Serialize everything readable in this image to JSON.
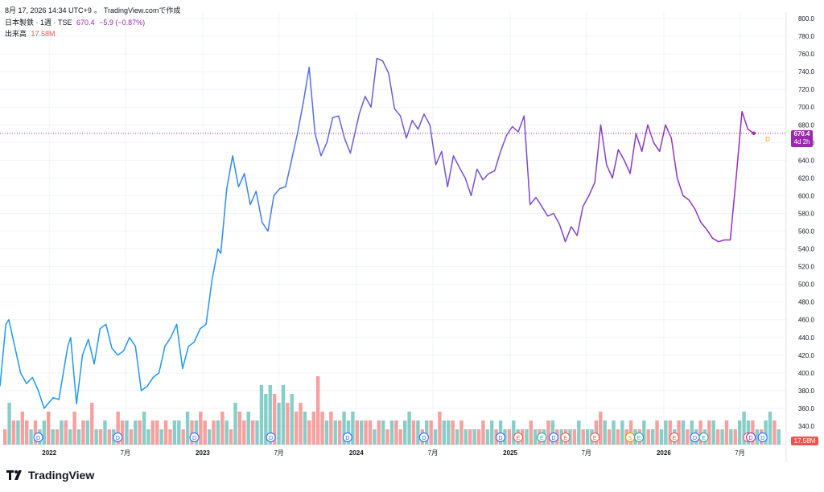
{
  "header": {
    "timestamp": "8月 17, 2026 14:34 UTC+9",
    "source": "TradingView.comで作成",
    "symbol": "日本製鉄 · 1週 · TSE",
    "last": "670.4",
    "change": "−5.9 (−0.87%)",
    "volume_label": "出来高",
    "volume_value": "17.58M"
  },
  "price_tag": {
    "value": "670.4",
    "countdown": "4d 2h"
  },
  "volume_tag": "17.58M",
  "footer": {
    "brand": "TradingView"
  },
  "colors": {
    "line_early": "#2196f3",
    "line_late": "#9c27b0",
    "up_volume": "#26a69a",
    "down_volume": "#ef5350",
    "price_tag": "#9c27b0",
    "grid": "#f0f3fa",
    "text": "#131722"
  },
  "chart_data": {
    "type": "line",
    "title": "日本製鉄 · 1週 · TSE",
    "xlabel": "",
    "ylabel": "",
    "ylim": [
      330,
      800
    ],
    "yticks": [
      340,
      360,
      380,
      400,
      420,
      440,
      460,
      480,
      500,
      520,
      540,
      560,
      580,
      600,
      620,
      640,
      660,
      680,
      700,
      720,
      740,
      760,
      780,
      800
    ],
    "xticks": [
      "2022",
      "7月",
      "2023",
      "7月",
      "2024",
      "7月",
      "2025",
      "7月",
      "2026",
      "7月"
    ],
    "x_range": [
      "2021-09-06",
      "2026-10-19"
    ],
    "grid": true,
    "last_value": 670.4,
    "price_series": [
      [
        "2021-09-06",
        385
      ],
      [
        "2021-09-20",
        455
      ],
      [
        "2021-09-27",
        460
      ],
      [
        "2021-10-11",
        430
      ],
      [
        "2021-10-25",
        400
      ],
      [
        "2021-11-08",
        388
      ],
      [
        "2021-11-22",
        395
      ],
      [
        "2021-12-06",
        380
      ],
      [
        "2021-12-20",
        360
      ],
      [
        "2022-01-10",
        372
      ],
      [
        "2022-01-24",
        370
      ],
      [
        "2022-02-14",
        430
      ],
      [
        "2022-02-21",
        440
      ],
      [
        "2022-03-07",
        365
      ],
      [
        "2022-03-21",
        420
      ],
      [
        "2022-04-04",
        438
      ],
      [
        "2022-04-18",
        410
      ],
      [
        "2022-05-02",
        450
      ],
      [
        "2022-05-16",
        455
      ],
      [
        "2022-05-30",
        428
      ],
      [
        "2022-06-13",
        420
      ],
      [
        "2022-06-27",
        425
      ],
      [
        "2022-07-11",
        440
      ],
      [
        "2022-07-25",
        430
      ],
      [
        "2022-08-08",
        380
      ],
      [
        "2022-08-22",
        385
      ],
      [
        "2022-09-05",
        395
      ],
      [
        "2022-09-19",
        400
      ],
      [
        "2022-10-03",
        430
      ],
      [
        "2022-10-17",
        440
      ],
      [
        "2022-10-31",
        455
      ],
      [
        "2022-11-14",
        405
      ],
      [
        "2022-11-28",
        430
      ],
      [
        "2022-12-12",
        435
      ],
      [
        "2022-12-26",
        450
      ],
      [
        "2023-01-09",
        455
      ],
      [
        "2023-01-23",
        505
      ],
      [
        "2023-02-06",
        540
      ],
      [
        "2023-02-13",
        535
      ],
      [
        "2023-02-27",
        608
      ],
      [
        "2023-03-13",
        645
      ],
      [
        "2023-03-27",
        610
      ],
      [
        "2023-04-10",
        625
      ],
      [
        "2023-04-24",
        590
      ],
      [
        "2023-05-08",
        605
      ],
      [
        "2023-05-22",
        570
      ],
      [
        "2023-06-05",
        560
      ],
      [
        "2023-06-19",
        600
      ],
      [
        "2023-07-03",
        608
      ],
      [
        "2023-07-17",
        610
      ],
      [
        "2023-07-31",
        640
      ],
      [
        "2023-08-14",
        670
      ],
      [
        "2023-08-28",
        705
      ],
      [
        "2023-09-11",
        745
      ],
      [
        "2023-09-25",
        670
      ],
      [
        "2023-10-09",
        645
      ],
      [
        "2023-10-23",
        660
      ],
      [
        "2023-11-06",
        688
      ],
      [
        "2023-11-20",
        690
      ],
      [
        "2023-12-04",
        665
      ],
      [
        "2023-12-18",
        648
      ],
      [
        "2024-01-08",
        692
      ],
      [
        "2024-01-22",
        712
      ],
      [
        "2024-02-05",
        700
      ],
      [
        "2024-02-19",
        755
      ],
      [
        "2024-03-04",
        752
      ],
      [
        "2024-03-18",
        738
      ],
      [
        "2024-04-01",
        698
      ],
      [
        "2024-04-15",
        690
      ],
      [
        "2024-04-29",
        665
      ],
      [
        "2024-05-13",
        685
      ],
      [
        "2024-05-27",
        675
      ],
      [
        "2024-06-10",
        692
      ],
      [
        "2024-06-24",
        680
      ],
      [
        "2024-07-08",
        635
      ],
      [
        "2024-07-22",
        650
      ],
      [
        "2024-08-05",
        610
      ],
      [
        "2024-08-19",
        645
      ],
      [
        "2024-09-02",
        632
      ],
      [
        "2024-09-16",
        620
      ],
      [
        "2024-09-30",
        600
      ],
      [
        "2024-10-14",
        630
      ],
      [
        "2024-10-28",
        618
      ],
      [
        "2024-11-11",
        625
      ],
      [
        "2024-11-25",
        628
      ],
      [
        "2024-12-09",
        650
      ],
      [
        "2024-12-23",
        668
      ],
      [
        "2025-01-06",
        678
      ],
      [
        "2025-01-20",
        672
      ],
      [
        "2025-02-03",
        690
      ],
      [
        "2025-02-17",
        590
      ],
      [
        "2025-03-03",
        598
      ],
      [
        "2025-03-17",
        588
      ],
      [
        "2025-03-31",
        577
      ],
      [
        "2025-04-14",
        580
      ],
      [
        "2025-04-28",
        568
      ],
      [
        "2025-05-12",
        548
      ],
      [
        "2025-05-26",
        565
      ],
      [
        "2025-06-09",
        555
      ],
      [
        "2025-06-23",
        588
      ],
      [
        "2025-07-07",
        600
      ],
      [
        "2025-07-21",
        615
      ],
      [
        "2025-08-04",
        680
      ],
      [
        "2025-08-18",
        635
      ],
      [
        "2025-09-01",
        620
      ],
      [
        "2025-09-15",
        652
      ],
      [
        "2025-09-29",
        640
      ],
      [
        "2025-10-13",
        625
      ],
      [
        "2025-10-27",
        670
      ],
      [
        "2025-11-10",
        650
      ],
      [
        "2025-11-24",
        680
      ],
      [
        "2025-12-08",
        660
      ],
      [
        "2025-12-22",
        650
      ],
      [
        "2026-01-05",
        680
      ],
      [
        "2026-01-19",
        665
      ],
      [
        "2026-02-02",
        620
      ],
      [
        "2026-02-16",
        600
      ],
      [
        "2026-03-02",
        595
      ],
      [
        "2026-03-16",
        585
      ],
      [
        "2026-03-30",
        570
      ],
      [
        "2026-04-13",
        562
      ],
      [
        "2026-04-27",
        552
      ],
      [
        "2026-05-11",
        548
      ],
      [
        "2026-05-25",
        550
      ],
      [
        "2026-06-08",
        550
      ],
      [
        "2026-06-22",
        620
      ],
      [
        "2026-07-06",
        695
      ],
      [
        "2026-07-20",
        675
      ],
      [
        "2026-08-03",
        670.4
      ]
    ],
    "volume_series": [
      [
        1,
        0
      ],
      [
        4,
        1
      ],
      [
        2,
        0
      ],
      [
        2,
        1
      ],
      [
        3,
        0
      ],
      [
        2,
        0
      ],
      [
        1,
        1
      ],
      [
        2,
        0
      ],
      [
        1,
        1
      ],
      [
        2,
        1
      ],
      [
        3,
        0
      ],
      [
        1,
        1
      ],
      [
        1,
        0
      ],
      [
        2,
        1
      ],
      [
        2,
        0
      ],
      [
        1,
        1
      ],
      [
        3,
        0
      ],
      [
        1,
        1
      ],
      [
        2,
        0
      ],
      [
        2,
        1
      ],
      [
        4,
        0
      ],
      [
        1,
        1
      ],
      [
        1,
        0
      ],
      [
        2,
        1
      ],
      [
        1,
        0
      ],
      [
        1,
        1
      ],
      [
        3,
        0
      ],
      [
        2,
        0
      ],
      [
        2,
        1
      ],
      [
        1,
        0
      ],
      [
        2,
        1
      ],
      [
        2,
        0
      ],
      [
        3,
        1
      ],
      [
        1,
        1
      ],
      [
        2,
        0
      ],
      [
        2,
        0
      ],
      [
        1,
        1
      ],
      [
        2,
        0
      ],
      [
        1,
        0
      ],
      [
        2,
        1
      ],
      [
        2,
        1
      ],
      [
        1,
        0
      ],
      [
        3,
        1
      ],
      [
        2,
        0
      ],
      [
        2,
        1
      ],
      [
        3,
        0
      ],
      [
        2,
        0
      ],
      [
        1,
        1
      ],
      [
        2,
        0
      ],
      [
        2,
        1
      ],
      [
        3,
        0
      ],
      [
        2,
        1
      ],
      [
        1,
        0
      ],
      [
        4,
        1
      ],
      [
        3,
        0
      ],
      [
        2,
        0
      ],
      [
        3,
        1
      ],
      [
        2,
        0
      ],
      [
        2,
        1
      ],
      [
        6,
        1
      ],
      [
        5,
        1
      ],
      [
        6,
        1
      ],
      [
        5,
        0
      ],
      [
        4,
        1
      ],
      [
        6,
        1
      ],
      [
        4,
        0
      ],
      [
        5,
        1
      ],
      [
        3,
        0
      ],
      [
        4,
        0
      ],
      [
        3,
        1
      ],
      [
        2,
        0
      ],
      [
        3,
        0
      ],
      [
        7,
        0
      ],
      [
        3,
        0
      ],
      [
        2,
        1
      ],
      [
        3,
        0
      ],
      [
        2,
        1
      ],
      [
        2,
        0
      ],
      [
        3,
        1
      ],
      [
        2,
        1
      ],
      [
        3,
        1
      ],
      [
        2,
        0
      ],
      [
        2,
        1
      ],
      [
        2,
        0
      ],
      [
        2,
        0
      ],
      [
        1,
        1
      ],
      [
        2,
        0
      ],
      [
        2,
        1
      ],
      [
        1,
        0
      ],
      [
        2,
        1
      ],
      [
        2,
        0
      ],
      [
        1,
        0
      ],
      [
        2,
        1
      ],
      [
        3,
        1
      ],
      [
        2,
        0
      ],
      [
        2,
        1
      ],
      [
        1,
        0
      ],
      [
        2,
        1
      ],
      [
        2,
        0
      ],
      [
        1,
        1
      ],
      [
        3,
        0
      ],
      [
        2,
        1
      ],
      [
        2,
        1
      ],
      [
        2,
        0
      ],
      [
        1,
        1
      ],
      [
        2,
        0
      ],
      [
        1,
        1
      ],
      [
        1,
        0
      ],
      [
        1,
        1
      ],
      [
        1,
        0
      ],
      [
        2,
        0
      ],
      [
        1,
        1
      ],
      [
        2,
        1
      ],
      [
        1,
        0
      ],
      [
        2,
        1
      ],
      [
        1,
        1
      ],
      [
        1,
        0
      ],
      [
        2,
        1
      ],
      [
        1,
        1
      ],
      [
        1,
        0
      ],
      [
        1,
        1
      ],
      [
        2,
        0
      ],
      [
        1,
        1
      ],
      [
        1,
        0
      ],
      [
        1,
        1
      ],
      [
        2,
        0
      ],
      [
        2,
        1
      ],
      [
        1,
        0
      ],
      [
        1,
        1
      ],
      [
        1,
        0
      ],
      [
        1,
        1
      ],
      [
        1,
        0
      ],
      [
        2,
        1
      ],
      [
        1,
        0
      ],
      [
        1,
        1
      ],
      [
        1,
        1
      ],
      [
        2,
        0
      ],
      [
        3,
        0
      ],
      [
        2,
        1
      ],
      [
        1,
        0
      ],
      [
        2,
        1
      ],
      [
        1,
        0
      ],
      [
        2,
        1
      ],
      [
        1,
        0
      ],
      [
        2,
        0
      ],
      [
        1,
        1
      ],
      [
        1,
        0
      ],
      [
        2,
        1
      ],
      [
        1,
        0
      ],
      [
        1,
        1
      ],
      [
        2,
        0
      ],
      [
        1,
        1
      ],
      [
        2,
        1
      ],
      [
        2,
        0
      ],
      [
        1,
        1
      ],
      [
        2,
        0
      ],
      [
        2,
        1
      ],
      [
        1,
        0
      ],
      [
        2,
        1
      ],
      [
        1,
        1
      ],
      [
        2,
        0
      ],
      [
        1,
        1
      ],
      [
        2,
        0
      ],
      [
        2,
        1
      ],
      [
        1,
        0
      ],
      [
        1,
        1
      ],
      [
        2,
        0
      ],
      [
        1,
        1
      ],
      [
        1,
        0
      ],
      [
        2,
        1
      ],
      [
        3,
        1
      ],
      [
        2,
        1
      ],
      [
        2,
        0
      ],
      [
        1,
        1
      ],
      [
        1,
        0
      ],
      [
        2,
        1
      ],
      [
        3,
        1
      ],
      [
        2,
        0
      ],
      [
        1,
        1
      ]
    ],
    "events": [
      {
        "label": "D",
        "date": "2021-12-06",
        "color": "#2962ff"
      },
      {
        "label": "D",
        "date": "2022-06-13",
        "color": "#2962ff"
      },
      {
        "label": "D",
        "date": "2022-12-12",
        "color": "#2962ff"
      },
      {
        "label": "D",
        "date": "2023-06-12",
        "color": "#2962ff"
      },
      {
        "label": "D",
        "date": "2023-12-11",
        "color": "#2962ff"
      },
      {
        "label": "D",
        "date": "2024-06-10",
        "color": "#2962ff"
      },
      {
        "label": "D",
        "date": "2024-12-09",
        "color": "#2962ff"
      },
      {
        "label": "E",
        "date": "2025-01-20",
        "color": "#ef5350"
      },
      {
        "label": "E",
        "date": "2025-03-17",
        "color": "#26a69a"
      },
      {
        "label": "D",
        "date": "2025-04-14",
        "color": "#2962ff"
      },
      {
        "label": "E",
        "date": "2025-05-12",
        "color": "#ef5350"
      },
      {
        "label": "E",
        "date": "2025-07-21",
        "color": "#ef5350"
      },
      {
        "label": "D",
        "date": "2025-10-13",
        "color": "#2962ff"
      },
      {
        "label": "S",
        "date": "2025-10-13",
        "color": "#ff9800"
      },
      {
        "label": "E",
        "date": "2025-11-03",
        "color": "#26a69a"
      },
      {
        "label": "E",
        "date": "2026-01-26",
        "color": "#ef5350"
      },
      {
        "label": "D",
        "date": "2026-03-16",
        "color": "#2962ff"
      },
      {
        "label": "E",
        "date": "2026-04-06",
        "color": "#26a69a"
      },
      {
        "label": "E",
        "date": "2026-07-20",
        "color": "#ef5350"
      },
      {
        "label": "D",
        "date": "2026-07-27",
        "color": "#9c27b0"
      },
      {
        "label": "D",
        "date": "2026-08-24",
        "color": "#2962ff"
      }
    ]
  }
}
